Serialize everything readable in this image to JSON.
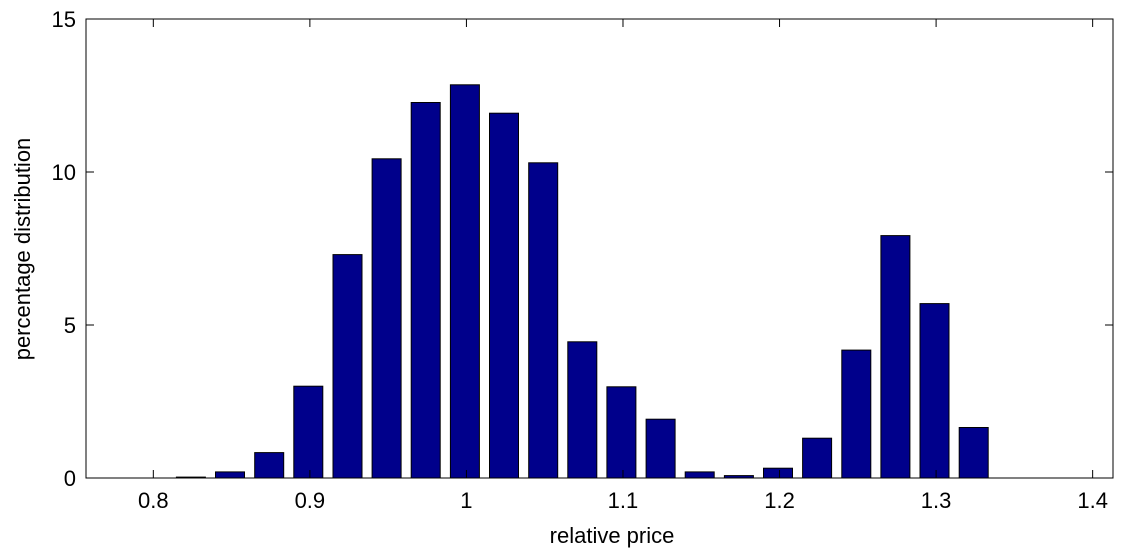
{
  "chart_data": {
    "type": "bar",
    "title": "",
    "xlabel": "relative price",
    "ylabel": "percentage distribution",
    "xlim": [
      0.757,
      1.413
    ],
    "ylim": [
      0,
      15
    ],
    "grid": false,
    "bar_color": "#00008B",
    "bar_width": 0.0185,
    "xticks": [
      0.8,
      0.9,
      1,
      1.1,
      1.2,
      1.3,
      1.4
    ],
    "yticks": [
      0,
      5,
      10,
      15
    ],
    "x": [
      0.799,
      0.824,
      0.849,
      0.874,
      0.899,
      0.924,
      0.949,
      0.974,
      0.999,
      1.024,
      1.049,
      1.074,
      1.099,
      1.124,
      1.149,
      1.174,
      1.199,
      1.224,
      1.249,
      1.274,
      1.299,
      1.324,
      1.349,
      1.374,
      1.399
    ],
    "values": [
      0.0,
      0.03,
      0.2,
      0.83,
      3.0,
      7.3,
      10.43,
      12.27,
      12.85,
      11.92,
      10.3,
      4.45,
      2.98,
      1.92,
      0.2,
      0.08,
      0.32,
      1.3,
      4.18,
      7.92,
      5.7,
      1.65,
      0.0,
      0.0,
      0.0
    ]
  }
}
